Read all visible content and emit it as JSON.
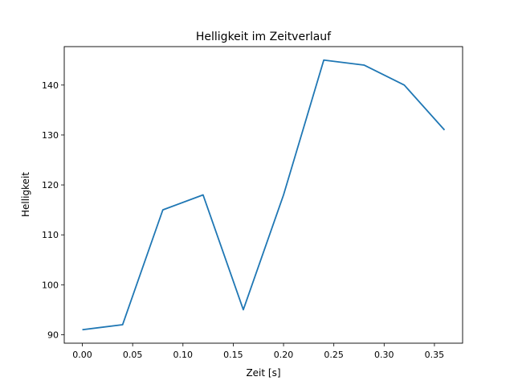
{
  "chart_data": {
    "type": "line",
    "title": "Helligkeit im Zeitverlauf",
    "xlabel": "Zeit [s]",
    "ylabel": "Helligkeit",
    "x": [
      0.0,
      0.04,
      0.08,
      0.12,
      0.16,
      0.2,
      0.24,
      0.28,
      0.32,
      0.36
    ],
    "series": [
      {
        "name": "Helligkeit",
        "color": "#1f77b4",
        "values": [
          91,
          92,
          115,
          118,
          95,
          118,
          145,
          144,
          140,
          131
        ]
      }
    ],
    "xlim": [
      -0.018,
      0.378
    ],
    "ylim": [
      88.3,
      147.7
    ],
    "xticks": [
      0.0,
      0.05,
      0.1,
      0.15,
      0.2,
      0.25,
      0.3,
      0.35
    ],
    "xtick_labels": [
      "0.00",
      "0.05",
      "0.10",
      "0.15",
      "0.20",
      "0.25",
      "0.30",
      "0.35"
    ],
    "yticks": [
      90,
      100,
      110,
      120,
      130,
      140
    ],
    "ytick_labels": [
      "90",
      "100",
      "110",
      "120",
      "130",
      "140"
    ],
    "grid": false,
    "legend": "none"
  }
}
